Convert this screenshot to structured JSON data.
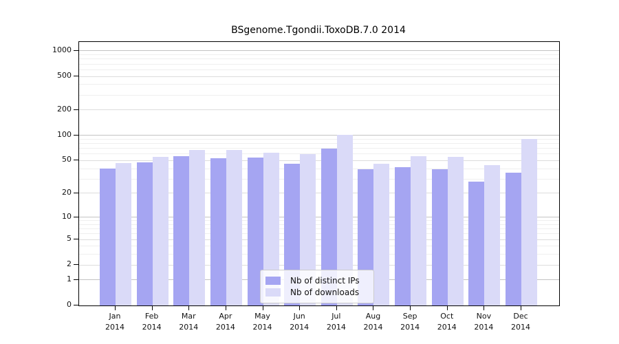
{
  "title": "BSgenome.Tgondii.ToxoDB.7.0 2014",
  "chart_data": {
    "type": "bar",
    "title": "BSgenome.Tgondii.ToxoDB.7.0 2014",
    "categories": [
      "Jan",
      "Feb",
      "Mar",
      "Apr",
      "May",
      "Jun",
      "Jul",
      "Aug",
      "Sep",
      "Oct",
      "Nov",
      "Dec"
    ],
    "year_label": "2014",
    "series": [
      {
        "name": "Nb of distinct IPs",
        "color": "#a5a5f2",
        "values": [
          40,
          48,
          57,
          53,
          54,
          46,
          70,
          39,
          42,
          39,
          28,
          36
        ]
      },
      {
        "name": "Nb of downloads",
        "color": "#dadaf8",
        "values": [
          47,
          55,
          67,
          67,
          62,
          60,
          101,
          46,
          57,
          55,
          44,
          90
        ]
      }
    ],
    "xlabel": "",
    "ylabel": "",
    "y_scale": "log10(value+1)",
    "y_ticks": [
      0,
      1,
      2,
      5,
      10,
      20,
      50,
      100,
      200,
      500,
      1000
    ],
    "y_minor_gridlines": [
      3,
      4,
      6,
      7,
      8,
      9,
      30,
      40,
      60,
      70,
      80,
      90,
      300,
      400,
      600,
      700,
      800,
      900
    ],
    "y_emphasized_gridlines": [
      1,
      10,
      100,
      1000
    ],
    "ylim": [
      0,
      1275
    ],
    "grid": true,
    "legend_position": "bottom-center-inside"
  },
  "legend": {
    "items": [
      {
        "label": "Nb of distinct IPs",
        "color": "#a5a5f2"
      },
      {
        "label": "Nb of downloads",
        "color": "#dadaf8"
      }
    ]
  }
}
